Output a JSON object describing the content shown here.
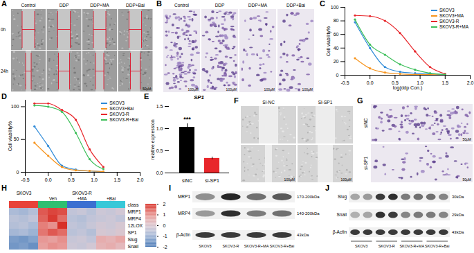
{
  "figure": {
    "panels": {
      "A": {
        "letter": "A",
        "columns": [
          "Control",
          "DDP",
          "DDP+MA",
          "DDP+Bai"
        ],
        "rows": [
          "0h",
          "24h"
        ],
        "scale": "50μM"
      },
      "B": {
        "letter": "B",
        "columns": [
          "Control",
          "DDP",
          "DDP+MA",
          "DDP+Bai"
        ],
        "scale": "100μM"
      },
      "F": {
        "letter": "F",
        "columns": [
          "SI-NC",
          "SI-SP1"
        ],
        "scale": "100μM"
      },
      "G": {
        "letter": "G",
        "rows": [
          "siNC",
          "si-SP1"
        ],
        "scale": "50μM"
      },
      "I": {
        "letter": "I",
        "rows": [
          {
            "label": "MRP1",
            "size": "170-200kDa"
          },
          {
            "label": "MRP4",
            "size": "140-200kDa"
          },
          {
            "label": "β-Actin",
            "size": "43kDa"
          }
        ],
        "lanes": [
          "SKOV3",
          "SKOV3-R",
          "SKOV3-R+MA",
          "SKOV3-R+Bai"
        ]
      },
      "J": {
        "letter": "J",
        "rows": [
          {
            "label": "Slug",
            "size": "30kDa"
          },
          {
            "label": "Snail",
            "size": "29kDa"
          },
          {
            "label": "β-Actin",
            "size": "43kDa"
          }
        ],
        "lanes": [
          "SKOV3",
          "SKOV3-R",
          "SKOV3-R+MA",
          "SKOV3-R+Bai"
        ]
      }
    }
  },
  "chart_data": [
    {
      "letter": "C",
      "type": "line",
      "xlabel": "log(ddp Con.)",
      "ylabel": "Cell viability%",
      "x": [
        -0.3,
        0,
        0.3,
        0.6,
        0.9,
        1.2,
        1.5
      ],
      "xlim": [
        -0.5,
        2
      ],
      "xticks": [
        -0.5,
        {
          "value": 0,
          "label": "0.0"
        },
        0.5,
        {
          "value": 1,
          "label": "1.0"
        },
        1.5,
        {
          "value": 2,
          "label": "2.0"
        }
      ],
      "ylim": [
        0,
        100
      ],
      "yticks": [
        0,
        20,
        40,
        60,
        80,
        100
      ],
      "marker": "circle",
      "legend": "top-right",
      "series": [
        {
          "name": "SKOV3",
          "color": "#2e8ad8",
          "values": [
            78,
            40,
            12,
            5,
            3,
            2,
            1
          ]
        },
        {
          "name": "SKOV3+MA",
          "color": "#f7941d",
          "values": [
            25,
            10,
            4,
            2,
            1,
            1,
            0
          ]
        },
        {
          "name": "SKOV3-R",
          "color": "#e8262b",
          "values": [
            88,
            87,
            80,
            62,
            35,
            12,
            2
          ]
        },
        {
          "name": "SKOV3-R+MA",
          "color": "#3dbf5a",
          "values": [
            82,
            45,
            30,
            16,
            8,
            3,
            1
          ]
        }
      ]
    },
    {
      "letter": "D",
      "type": "line",
      "ylabel": "Cell viability%",
      "x": [
        -0.3,
        0,
        0.3,
        0.6,
        0.9,
        1.2
      ],
      "xlim": [
        -0.5,
        2
      ],
      "xticks": [
        -0.5,
        {
          "value": 0,
          "label": "0.0"
        },
        0.5,
        {
          "value": 1,
          "label": "1.0"
        },
        1.5,
        {
          "value": 2,
          "label": "2.0"
        }
      ],
      "ylim": [
        0,
        110
      ],
      "yticks": [
        0,
        50,
        100
      ],
      "marker": "circle",
      "legend": "top-right",
      "series": [
        {
          "name": "SKOV3",
          "color": "#2e8ad8",
          "values": [
            70,
            40,
            10,
            4,
            2,
            1
          ]
        },
        {
          "name": "SKOV3+Bai",
          "color": "#f7941d",
          "values": [
            45,
            25,
            8,
            3,
            2,
            1
          ]
        },
        {
          "name": "SKOV3-R",
          "color": "#e8262b",
          "values": [
            105,
            105,
            95,
            80,
            35,
            8
          ]
        },
        {
          "name": "SKOV3-R+Bai",
          "color": "#3dbf5a",
          "values": [
            102,
            100,
            92,
            60,
            20,
            5
          ]
        }
      ]
    },
    {
      "letter": "E",
      "type": "bar",
      "title": "SP1",
      "ylabel": "relative expression",
      "categories": [
        "siNC",
        "si-SP1"
      ],
      "values": [
        1.03,
        0.33
      ],
      "errors": [
        0.08,
        0.03
      ],
      "colors": [
        "#000000",
        "#e8262b"
      ],
      "ylim": [
        0,
        1.5
      ],
      "yticks": [
        {
          "value": 0,
          "label": "0.0"
        },
        0.5,
        {
          "value": 1,
          "label": "1.0"
        },
        1.5
      ],
      "annotations": [
        {
          "category": "siNC",
          "text": "***"
        }
      ]
    },
    {
      "letter": "H",
      "type": "heatmap",
      "rows": [
        "MRP1",
        "MRP4",
        "12LOX",
        "SP1",
        "Slug",
        "Snail"
      ],
      "values": [
        [
          -0.8,
          -0.9,
          -0.7,
          1.6,
          1.8,
          1.7,
          -0.5,
          -0.4,
          -0.6,
          -0.3,
          -0.4,
          -0.2
        ],
        [
          -0.6,
          -0.7,
          -0.5,
          1.5,
          1.9,
          1.4,
          -0.6,
          -0.7,
          -0.5,
          -0.4,
          -0.3,
          -0.5
        ],
        [
          -0.7,
          -0.6,
          -0.8,
          1.2,
          1.0,
          2.2,
          -0.5,
          -0.6,
          -0.4,
          -0.2,
          -0.3,
          -0.1
        ],
        [
          -0.9,
          -0.8,
          -1.0,
          1.3,
          1.6,
          1.4,
          -0.6,
          -0.5,
          -0.7,
          -0.1,
          -0.2,
          0.0
        ],
        [
          -1.4,
          -1.5,
          -1.3,
          0.9,
          0.8,
          1.0,
          -0.4,
          -0.3,
          -0.5,
          0.6,
          0.5,
          0.7
        ],
        [
          -1.5,
          -1.4,
          -1.6,
          0.8,
          1.0,
          0.9,
          -0.3,
          -0.4,
          -0.2,
          0.5,
          0.6,
          0.4
        ]
      ],
      "class_label": "class",
      "column_class": [
        "SKOV3",
        "SKOV3",
        "SKOV3",
        "Veh",
        "Veh",
        "Veh",
        "+MA",
        "+MA",
        "+MA",
        "+Bai",
        "+Bai",
        "+Bai"
      ],
      "class_colors": {
        "SKOV3": "#e8433a",
        "Veh": "#2fbf71",
        "+MA": "#3b6fd1",
        "+Bai": "#37c8d8"
      },
      "column_groups": [
        {
          "label": "SKOV3",
          "classes": [
            "SKOV3"
          ]
        },
        {
          "label": "SKOV3-R",
          "classes": [
            "Veh",
            "+MA",
            "+Bai"
          ]
        }
      ],
      "colorbar": {
        "lim": [
          -2,
          2
        ],
        "ticks": [
          -2,
          -1,
          0,
          1,
          2
        ],
        "colors": [
          "#4575b4",
          "#ffffff",
          "#d73027"
        ]
      }
    }
  ]
}
